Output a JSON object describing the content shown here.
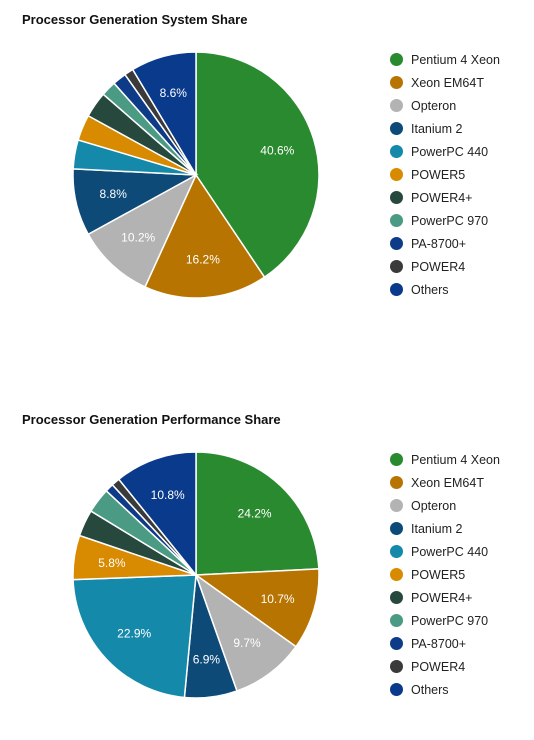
{
  "chart_data": [
    {
      "type": "pie",
      "title": "Processor Generation System Share",
      "categories": [
        "Pentium 4 Xeon",
        "Xeon EM64T",
        "Opteron",
        "Itanium 2",
        "PowerPC 440",
        "POWER5",
        "POWER4+",
        "PowerPC 970",
        "PA-8700+",
        "POWER4",
        "Others"
      ],
      "values": [
        40.6,
        16.2,
        10.2,
        8.8,
        3.8,
        3.4,
        3.4,
        2.0,
        1.8,
        1.2,
        8.6
      ],
      "value_labels": [
        "40.6%",
        "16.2%",
        "10.2%",
        "8.8%",
        "",
        "",
        "",
        "",
        "",
        "",
        "8.6%"
      ],
      "colors": [
        "#2a8a2f",
        "#b87400",
        "#b3b3b3",
        "#0d4a78",
        "#1489aa",
        "#d88a00",
        "#27493d",
        "#4a9a84",
        "#0e3b87",
        "#3a3a3a",
        "#0a3a8c"
      ],
      "legend_position": "right"
    },
    {
      "type": "pie",
      "title": "Processor Generation Performance Share",
      "categories": [
        "Pentium 4 Xeon",
        "Xeon EM64T",
        "Opteron",
        "Itanium 2",
        "PowerPC 440",
        "POWER5",
        "POWER4+",
        "PowerPC 970",
        "PA-8700+",
        "POWER4",
        "Others"
      ],
      "values": [
        24.2,
        10.7,
        9.7,
        6.9,
        22.9,
        5.8,
        3.5,
        3.3,
        1.1,
        1.1,
        10.8
      ],
      "value_labels": [
        "24.2%",
        "10.7%",
        "9.7%",
        "6.9%",
        "22.9%",
        "5.8%",
        "",
        "",
        "",
        "",
        "10.8%"
      ],
      "colors": [
        "#2a8a2f",
        "#b87400",
        "#b3b3b3",
        "#0d4a78",
        "#1489aa",
        "#d88a00",
        "#27493d",
        "#4a9a84",
        "#0e3b87",
        "#3a3a3a",
        "#0a3a8c"
      ],
      "legend_position": "right"
    }
  ]
}
